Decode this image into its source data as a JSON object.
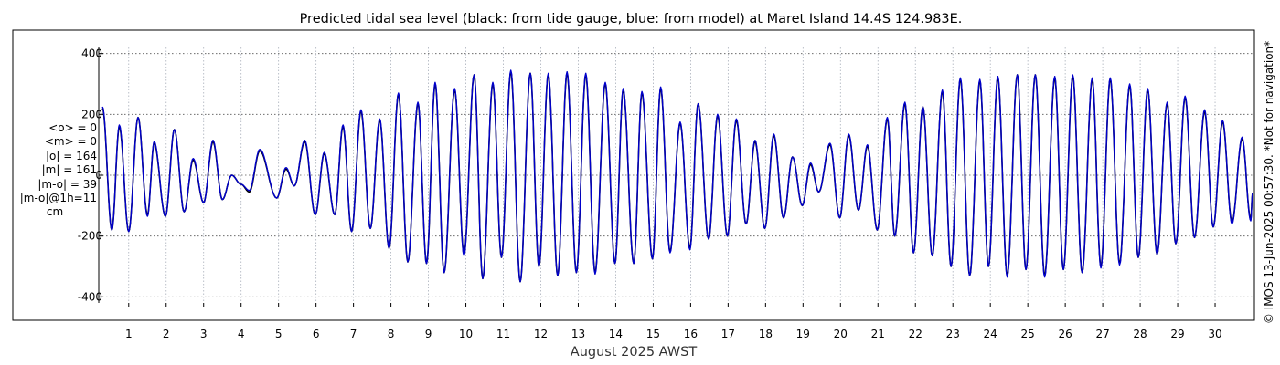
{
  "chart_data": {
    "type": "line",
    "title": "Predicted tidal sea level (black: from tide gauge, blue: from model) at Maret Island 14.4S 124.983E.",
    "xlabel": "August 2025 AWST",
    "ylabel": "",
    "ylim": [
      -420,
      420
    ],
    "xlim": [
      0.2,
      31.0
    ],
    "yticks": [
      400,
      200,
      0,
      -200,
      -400
    ],
    "yticklabels": [
      "400",
      "200",
      "0",
      "-200",
      "-400"
    ],
    "xticks": [
      1,
      2,
      3,
      4,
      5,
      6,
      7,
      8,
      9,
      10,
      11,
      12,
      13,
      14,
      15,
      16,
      17,
      18,
      19,
      20,
      21,
      22,
      23,
      24,
      25,
      26,
      27,
      28,
      29,
      30
    ],
    "xticklabels": [
      "1",
      "2",
      "3",
      "4",
      "5",
      "6",
      "7",
      "8",
      "9",
      "10",
      "11",
      "12",
      "13",
      "14",
      "15",
      "16",
      "17",
      "18",
      "19",
      "20",
      "21",
      "22",
      "23",
      "24",
      "25",
      "26",
      "27",
      "28",
      "29",
      "30"
    ],
    "grid": true,
    "series": [
      {
        "color": "#000000",
        "description_of_values": "cm",
        "extrema": [
          [
            0.3,
            220
          ],
          [
            0.55,
            -180
          ],
          [
            0.75,
            160
          ],
          [
            1.0,
            -185
          ],
          [
            1.25,
            190
          ],
          [
            1.5,
            -130
          ],
          [
            1.68,
            105
          ],
          [
            1.98,
            -135
          ],
          [
            2.22,
            150
          ],
          [
            2.48,
            -120
          ],
          [
            2.72,
            50
          ],
          [
            3.0,
            -90
          ],
          [
            3.25,
            110
          ],
          [
            3.5,
            -80
          ],
          [
            3.75,
            0
          ],
          [
            4.0,
            -30
          ],
          [
            4.22,
            -55
          ],
          [
            4.5,
            80
          ],
          [
            4.95,
            -75
          ],
          [
            5.2,
            20
          ],
          [
            5.42,
            -35
          ],
          [
            5.7,
            110
          ],
          [
            5.98,
            -130
          ],
          [
            6.22,
            70
          ],
          [
            6.5,
            -130
          ],
          [
            6.72,
            160
          ],
          [
            6.95,
            -185
          ],
          [
            7.2,
            210
          ],
          [
            7.45,
            -175
          ],
          [
            7.7,
            180
          ],
          [
            7.95,
            -240
          ],
          [
            8.2,
            265
          ],
          [
            8.45,
            -285
          ],
          [
            8.72,
            235
          ],
          [
            8.95,
            -290
          ],
          [
            9.18,
            300
          ],
          [
            9.42,
            -320
          ],
          [
            9.7,
            280
          ],
          [
            9.95,
            -260
          ],
          [
            10.22,
            330
          ],
          [
            10.45,
            -340
          ],
          [
            10.72,
            300
          ],
          [
            10.95,
            -270
          ],
          [
            11.2,
            340
          ],
          [
            11.45,
            -350
          ],
          [
            11.72,
            335
          ],
          [
            11.95,
            -300
          ],
          [
            12.2,
            330
          ],
          [
            12.45,
            -330
          ],
          [
            12.7,
            335
          ],
          [
            12.95,
            -320
          ],
          [
            13.2,
            330
          ],
          [
            13.45,
            -320
          ],
          [
            13.72,
            300
          ],
          [
            13.98,
            -290
          ],
          [
            14.2,
            280
          ],
          [
            14.48,
            -290
          ],
          [
            14.7,
            270
          ],
          [
            14.98,
            -275
          ],
          [
            15.2,
            285
          ],
          [
            15.45,
            -250
          ],
          [
            15.72,
            170
          ],
          [
            15.98,
            -240
          ],
          [
            16.2,
            235
          ],
          [
            16.48,
            -210
          ],
          [
            16.72,
            195
          ],
          [
            16.98,
            -200
          ],
          [
            17.22,
            180
          ],
          [
            17.48,
            -160
          ],
          [
            17.72,
            110
          ],
          [
            17.98,
            -175
          ],
          [
            18.22,
            130
          ],
          [
            18.48,
            -140
          ],
          [
            18.72,
            60
          ],
          [
            18.98,
            -100
          ],
          [
            19.2,
            35
          ],
          [
            19.42,
            -55
          ],
          [
            19.72,
            100
          ],
          [
            19.98,
            -140
          ],
          [
            20.22,
            130
          ],
          [
            20.48,
            -115
          ],
          [
            20.72,
            95
          ],
          [
            20.98,
            -180
          ],
          [
            21.25,
            185
          ],
          [
            21.45,
            -200
          ],
          [
            21.72,
            235
          ],
          [
            21.95,
            -255
          ],
          [
            22.2,
            225
          ],
          [
            22.45,
            -265
          ],
          [
            22.72,
            275
          ],
          [
            22.95,
            -300
          ],
          [
            23.2,
            315
          ],
          [
            23.45,
            -330
          ],
          [
            23.72,
            310
          ],
          [
            23.95,
            -300
          ],
          [
            24.2,
            320
          ],
          [
            24.45,
            -330
          ],
          [
            24.72,
            330
          ],
          [
            24.95,
            -310
          ],
          [
            25.2,
            330
          ],
          [
            25.45,
            -330
          ],
          [
            25.72,
            320
          ],
          [
            25.95,
            -310
          ],
          [
            26.2,
            325
          ],
          [
            26.45,
            -320
          ],
          [
            26.72,
            315
          ],
          [
            26.95,
            -300
          ],
          [
            27.2,
            315
          ],
          [
            27.45,
            -290
          ],
          [
            27.72,
            295
          ],
          [
            27.95,
            -270
          ],
          [
            28.2,
            280
          ],
          [
            28.45,
            -260
          ],
          [
            28.72,
            235
          ],
          [
            28.95,
            -225
          ],
          [
            29.2,
            255
          ],
          [
            29.45,
            -205
          ],
          [
            29.72,
            210
          ],
          [
            29.95,
            -170
          ],
          [
            30.2,
            175
          ],
          [
            30.45,
            -155
          ],
          [
            30.72,
            120
          ],
          [
            30.95,
            -145
          ],
          [
            31.0,
            -60
          ]
        ]
      },
      {
        "color": "#0000cc",
        "description_of_values": "cm",
        "extrema": [
          [
            0.3,
            225
          ],
          [
            0.55,
            -180
          ],
          [
            0.75,
            165
          ],
          [
            1.0,
            -185
          ],
          [
            1.25,
            190
          ],
          [
            1.5,
            -135
          ],
          [
            1.68,
            110
          ],
          [
            1.98,
            -135
          ],
          [
            2.22,
            150
          ],
          [
            2.48,
            -120
          ],
          [
            2.72,
            55
          ],
          [
            3.0,
            -90
          ],
          [
            3.25,
            115
          ],
          [
            3.5,
            -80
          ],
          [
            3.75,
            0
          ],
          [
            4.0,
            -30
          ],
          [
            4.22,
            -50
          ],
          [
            4.5,
            85
          ],
          [
            4.95,
            -75
          ],
          [
            5.2,
            25
          ],
          [
            5.42,
            -35
          ],
          [
            5.7,
            115
          ],
          [
            5.98,
            -130
          ],
          [
            6.22,
            75
          ],
          [
            6.5,
            -130
          ],
          [
            6.72,
            165
          ],
          [
            6.95,
            -185
          ],
          [
            7.2,
            215
          ],
          [
            7.45,
            -175
          ],
          [
            7.7,
            185
          ],
          [
            7.95,
            -240
          ],
          [
            8.2,
            270
          ],
          [
            8.45,
            -285
          ],
          [
            8.72,
            240
          ],
          [
            8.95,
            -290
          ],
          [
            9.18,
            305
          ],
          [
            9.42,
            -320
          ],
          [
            9.7,
            285
          ],
          [
            9.95,
            -265
          ],
          [
            10.22,
            330
          ],
          [
            10.45,
            -340
          ],
          [
            10.72,
            305
          ],
          [
            10.95,
            -270
          ],
          [
            11.2,
            345
          ],
          [
            11.45,
            -350
          ],
          [
            11.72,
            335
          ],
          [
            11.95,
            -300
          ],
          [
            12.2,
            335
          ],
          [
            12.45,
            -330
          ],
          [
            12.7,
            340
          ],
          [
            12.95,
            -320
          ],
          [
            13.2,
            335
          ],
          [
            13.45,
            -325
          ],
          [
            13.72,
            305
          ],
          [
            13.98,
            -290
          ],
          [
            14.2,
            285
          ],
          [
            14.48,
            -290
          ],
          [
            14.7,
            275
          ],
          [
            14.98,
            -275
          ],
          [
            15.2,
            290
          ],
          [
            15.45,
            -255
          ],
          [
            15.72,
            175
          ],
          [
            15.98,
            -245
          ],
          [
            16.2,
            235
          ],
          [
            16.48,
            -210
          ],
          [
            16.72,
            200
          ],
          [
            16.98,
            -200
          ],
          [
            17.22,
            185
          ],
          [
            17.48,
            -160
          ],
          [
            17.72,
            115
          ],
          [
            17.98,
            -175
          ],
          [
            18.22,
            135
          ],
          [
            18.48,
            -140
          ],
          [
            18.72,
            60
          ],
          [
            18.98,
            -100
          ],
          [
            19.2,
            40
          ],
          [
            19.42,
            -55
          ],
          [
            19.72,
            105
          ],
          [
            19.98,
            -140
          ],
          [
            20.22,
            135
          ],
          [
            20.48,
            -115
          ],
          [
            20.72,
            100
          ],
          [
            20.98,
            -180
          ],
          [
            21.25,
            190
          ],
          [
            21.45,
            -200
          ],
          [
            21.72,
            240
          ],
          [
            21.95,
            -255
          ],
          [
            22.2,
            225
          ],
          [
            22.45,
            -265
          ],
          [
            22.72,
            280
          ],
          [
            22.95,
            -300
          ],
          [
            23.2,
            320
          ],
          [
            23.45,
            -330
          ],
          [
            23.72,
            315
          ],
          [
            23.95,
            -300
          ],
          [
            24.2,
            325
          ],
          [
            24.45,
            -335
          ],
          [
            24.72,
            330
          ],
          [
            24.95,
            -310
          ],
          [
            25.2,
            330
          ],
          [
            25.45,
            -335
          ],
          [
            25.72,
            325
          ],
          [
            25.95,
            -310
          ],
          [
            26.2,
            330
          ],
          [
            26.45,
            -320
          ],
          [
            26.72,
            320
          ],
          [
            26.95,
            -305
          ],
          [
            27.2,
            320
          ],
          [
            27.45,
            -295
          ],
          [
            27.72,
            300
          ],
          [
            27.95,
            -270
          ],
          [
            28.2,
            285
          ],
          [
            28.45,
            -260
          ],
          [
            28.72,
            240
          ],
          [
            28.95,
            -225
          ],
          [
            29.2,
            260
          ],
          [
            29.45,
            -205
          ],
          [
            29.72,
            215
          ],
          [
            29.95,
            -170
          ],
          [
            30.2,
            180
          ],
          [
            30.45,
            -160
          ],
          [
            30.72,
            125
          ],
          [
            30.95,
            -150
          ],
          [
            31.0,
            -60
          ]
        ]
      }
    ]
  },
  "stats": {
    "line1": "<o> = 0",
    "line2": "<m> = 0",
    "line3": "|o| = 164",
    "line4": "|m| = 161",
    "line5": "|m-o| = 39",
    "line6": "|m-o|@1h=11",
    "unit": "cm"
  },
  "credit": "© IMOS 13-Jun-2025 00:57:30. *Not for navigation*"
}
